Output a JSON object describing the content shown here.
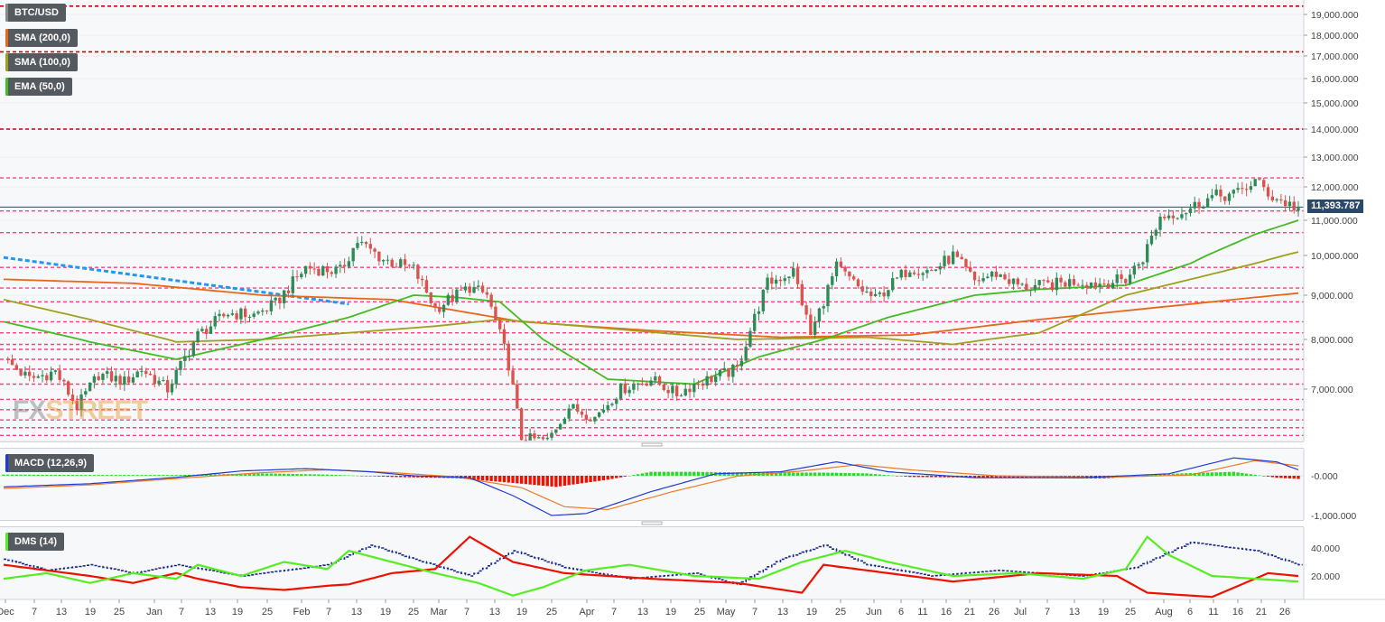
{
  "legend": {
    "symbol": "BTC/USD",
    "sma200": "SMA (200,0)",
    "sma100": "SMA (100,0)",
    "ema50": "EMA (50,0)",
    "macd": "MACD (12,26,9)",
    "dms": "DMS (14)"
  },
  "watermark": {
    "part1": "FX",
    "part2": "STREET"
  },
  "last_price": "11,393.787",
  "colors": {
    "up": "#2e8b57",
    "down": "#d9534f",
    "sma200": "#e8681a",
    "sma100": "#a0a020",
    "ema50": "#44bb22",
    "resistance": "#cc0000",
    "support": "#ff3d7f",
    "trend": "#2196f3",
    "macd": "#1f3bd1",
    "signal": "#f07a2a",
    "hist_pos": "#22dd22",
    "hist_neg": "#ee1100",
    "dmi_plus": "#55ee22",
    "dmi_minus": "#ee1100",
    "adx": "#1a2a8a"
  },
  "chart_data": [
    {
      "type": "candlestick",
      "title": "BTC/USD",
      "y_ticks": [
        "19,000.000",
        "18,000.000",
        "17,000.000",
        "16,000.000",
        "15,000.000",
        "14,000.000",
        "13,000.000",
        "12,000.000",
        "11,000.000",
        "10,000.000",
        "9,000.000",
        "8,000.000",
        "7,000.000"
      ],
      "x_ticks": [
        "Dec",
        "7",
        "13",
        "19",
        "25",
        "Jan",
        "7",
        "13",
        "19",
        "25",
        "Feb",
        "7",
        "13",
        "19",
        "25",
        "Mar",
        "7",
        "13",
        "19",
        "25",
        "Apr",
        "7",
        "13",
        "19",
        "25",
        "May",
        "7",
        "13",
        "19",
        "25",
        "Jun",
        "6",
        "11",
        "16",
        "21",
        "26",
        "Jul",
        "7",
        "13",
        "19",
        "25",
        "Aug",
        "6",
        "11",
        "16",
        "21",
        "26"
      ],
      "key_points": [
        [
          0,
          7600
        ],
        [
          6,
          7200
        ],
        [
          12,
          7350
        ],
        [
          17,
          6650
        ],
        [
          22,
          7300
        ],
        [
          28,
          7150
        ],
        [
          32,
          7400
        ],
        [
          38,
          7000
        ],
        [
          45,
          8100
        ],
        [
          52,
          8600
        ],
        [
          58,
          8550
        ],
        [
          63,
          8800
        ],
        [
          70,
          9700
        ],
        [
          78,
          9600
        ],
        [
          82,
          10400
        ],
        [
          88,
          9900
        ],
        [
          95,
          9650
        ],
        [
          100,
          8700
        ],
        [
          108,
          9200
        ],
        [
          112,
          9000
        ],
        [
          117,
          7500
        ],
        [
          120,
          6050
        ],
        [
          126,
          6000
        ],
        [
          131,
          6650
        ],
        [
          137,
          6450
        ],
        [
          143,
          7000
        ],
        [
          150,
          7200
        ],
        [
          156,
          6900
        ],
        [
          160,
          7100
        ],
        [
          170,
          7400
        ],
        [
          177,
          9300
        ],
        [
          183,
          9600
        ],
        [
          187,
          8100
        ],
        [
          193,
          9700
        ],
        [
          198,
          9200
        ],
        [
          202,
          8900
        ],
        [
          210,
          9700
        ],
        [
          215,
          9600
        ],
        [
          220,
          10000
        ],
        [
          225,
          9350
        ],
        [
          230,
          9550
        ],
        [
          236,
          9200
        ],
        [
          242,
          9250
        ],
        [
          248,
          9350
        ],
        [
          254,
          9300
        ],
        [
          260,
          9400
        ],
        [
          264,
          9950
        ],
        [
          268,
          11100
        ],
        [
          274,
          11300
        ],
        [
          280,
          11700
        ],
        [
          286,
          11800
        ],
        [
          290,
          12200
        ],
        [
          294,
          11700
        ],
        [
          300,
          11350
        ]
      ],
      "sma200_points": [
        [
          0,
          9400
        ],
        [
          30,
          9300
        ],
        [
          60,
          9000
        ],
        [
          90,
          8900
        ],
        [
          120,
          8400
        ],
        [
          150,
          8200
        ],
        [
          180,
          8050
        ],
        [
          210,
          8100
        ],
        [
          240,
          8450
        ],
        [
          270,
          8750
        ],
        [
          300,
          9050
        ]
      ],
      "sma100_points": [
        [
          0,
          8900
        ],
        [
          20,
          8450
        ],
        [
          40,
          7950
        ],
        [
          60,
          8000
        ],
        [
          80,
          8150
        ],
        [
          100,
          8300
        ],
        [
          115,
          8450
        ],
        [
          140,
          8250
        ],
        [
          170,
          8000
        ],
        [
          200,
          8050
        ],
        [
          220,
          7900
        ],
        [
          240,
          8150
        ],
        [
          260,
          9000
        ],
        [
          290,
          9800
        ],
        [
          300,
          10100
        ]
      ],
      "ema50_points": [
        [
          0,
          8400
        ],
        [
          20,
          7950
        ],
        [
          40,
          7600
        ],
        [
          60,
          8000
        ],
        [
          80,
          8500
        ],
        [
          95,
          9000
        ],
        [
          105,
          8950
        ],
        [
          115,
          8850
        ],
        [
          125,
          8000
        ],
        [
          140,
          7200
        ],
        [
          160,
          7100
        ],
        [
          175,
          7650
        ],
        [
          190,
          8000
        ],
        [
          205,
          8500
        ],
        [
          225,
          9000
        ],
        [
          240,
          9150
        ],
        [
          260,
          9250
        ],
        [
          275,
          9800
        ],
        [
          290,
          10600
        ],
        [
          300,
          11000
        ]
      ],
      "trendline_points": [
        [
          0,
          9950
        ],
        [
          55,
          9150
        ],
        [
          80,
          8800
        ]
      ],
      "resistance_levels": [
        19400,
        17200,
        14000
      ],
      "support_levels": [
        12300,
        11280,
        10650,
        9700,
        9180,
        8850,
        8400,
        8150,
        7900,
        7800,
        7600,
        7400,
        7100,
        6800,
        6600,
        6400,
        6250,
        6100
      ],
      "current_level": 11393.787
    },
    {
      "type": "line",
      "title": "MACD (12,26,9)",
      "y_ticks": [
        "-0.000",
        "-1,000.000"
      ],
      "macd_points": [
        [
          0,
          -280
        ],
        [
          20,
          -200
        ],
        [
          40,
          -40
        ],
        [
          55,
          120
        ],
        [
          70,
          180
        ],
        [
          85,
          100
        ],
        [
          95,
          0
        ],
        [
          108,
          -50
        ],
        [
          118,
          -500
        ],
        [
          127,
          -1000
        ],
        [
          135,
          -950
        ],
        [
          150,
          -400
        ],
        [
          165,
          50
        ],
        [
          180,
          100
        ],
        [
          193,
          350
        ],
        [
          205,
          100
        ],
        [
          225,
          -50
        ],
        [
          250,
          -50
        ],
        [
          270,
          50
        ],
        [
          285,
          450
        ],
        [
          295,
          350
        ],
        [
          300,
          150
        ]
      ],
      "signal_points": [
        [
          0,
          -320
        ],
        [
          20,
          -230
        ],
        [
          40,
          -70
        ],
        [
          60,
          80
        ],
        [
          75,
          150
        ],
        [
          90,
          80
        ],
        [
          105,
          -30
        ],
        [
          120,
          -300
        ],
        [
          130,
          -780
        ],
        [
          140,
          -850
        ],
        [
          155,
          -400
        ],
        [
          170,
          -10
        ],
        [
          185,
          120
        ],
        [
          198,
          280
        ],
        [
          210,
          150
        ],
        [
          230,
          0
        ],
        [
          255,
          -40
        ],
        [
          275,
          20
        ],
        [
          290,
          380
        ],
        [
          300,
          250
        ]
      ],
      "histogram_points": [
        [
          0,
          30
        ],
        [
          20,
          20
        ],
        [
          40,
          20
        ],
        [
          60,
          60
        ],
        [
          75,
          30
        ],
        [
          90,
          -30
        ],
        [
          105,
          -60
        ],
        [
          120,
          -200
        ],
        [
          128,
          -280
        ],
        [
          140,
          -100
        ],
        [
          150,
          100
        ],
        [
          160,
          100
        ],
        [
          175,
          80
        ],
        [
          190,
          80
        ],
        [
          200,
          60
        ],
        [
          210,
          -30
        ],
        [
          230,
          -50
        ],
        [
          255,
          -70
        ],
        [
          270,
          50
        ],
        [
          285,
          100
        ],
        [
          295,
          -50
        ],
        [
          300,
          -80
        ]
      ]
    },
    {
      "type": "line",
      "title": "DMS (14)",
      "y_ticks": [
        "40.000",
        "20.000"
      ],
      "dmi_plus_points": [
        [
          0,
          18
        ],
        [
          10,
          22
        ],
        [
          20,
          15
        ],
        [
          30,
          22
        ],
        [
          40,
          18
        ],
        [
          45,
          28
        ],
        [
          55,
          20
        ],
        [
          65,
          30
        ],
        [
          75,
          25
        ],
        [
          80,
          38
        ],
        [
          90,
          30
        ],
        [
          100,
          22
        ],
        [
          110,
          15
        ],
        [
          118,
          6
        ],
        [
          125,
          12
        ],
        [
          135,
          24
        ],
        [
          145,
          28
        ],
        [
          160,
          20
        ],
        [
          175,
          18
        ],
        [
          185,
          30
        ],
        [
          195,
          38
        ],
        [
          205,
          30
        ],
        [
          220,
          20
        ],
        [
          235,
          22
        ],
        [
          250,
          18
        ],
        [
          260,
          25
        ],
        [
          265,
          48
        ],
        [
          270,
          35
        ],
        [
          280,
          20
        ],
        [
          300,
          16
        ]
      ],
      "dmi_minus_points": [
        [
          0,
          28
        ],
        [
          10,
          24
        ],
        [
          20,
          20
        ],
        [
          30,
          15
        ],
        [
          40,
          22
        ],
        [
          45,
          18
        ],
        [
          55,
          12
        ],
        [
          65,
          10
        ],
        [
          75,
          13
        ],
        [
          80,
          14
        ],
        [
          90,
          22
        ],
        [
          100,
          25
        ],
        [
          108,
          48
        ],
        [
          118,
          30
        ],
        [
          130,
          22
        ],
        [
          150,
          18
        ],
        [
          170,
          15
        ],
        [
          185,
          8
        ],
        [
          190,
          28
        ],
        [
          205,
          22
        ],
        [
          220,
          16
        ],
        [
          240,
          22
        ],
        [
          258,
          20
        ],
        [
          265,
          8
        ],
        [
          280,
          5
        ],
        [
          293,
          22
        ],
        [
          300,
          20
        ]
      ],
      "adx_points": [
        [
          0,
          32
        ],
        [
          10,
          24
        ],
        [
          20,
          28
        ],
        [
          30,
          22
        ],
        [
          40,
          28
        ],
        [
          55,
          20
        ],
        [
          75,
          28
        ],
        [
          85,
          42
        ],
        [
          95,
          32
        ],
        [
          108,
          20
        ],
        [
          118,
          38
        ],
        [
          130,
          26
        ],
        [
          145,
          18
        ],
        [
          160,
          22
        ],
        [
          170,
          14
        ],
        [
          180,
          32
        ],
        [
          190,
          42
        ],
        [
          200,
          28
        ],
        [
          215,
          20
        ],
        [
          230,
          24
        ],
        [
          250,
          20
        ],
        [
          262,
          26
        ],
        [
          275,
          44
        ],
        [
          290,
          38
        ],
        [
          300,
          28
        ]
      ]
    }
  ]
}
